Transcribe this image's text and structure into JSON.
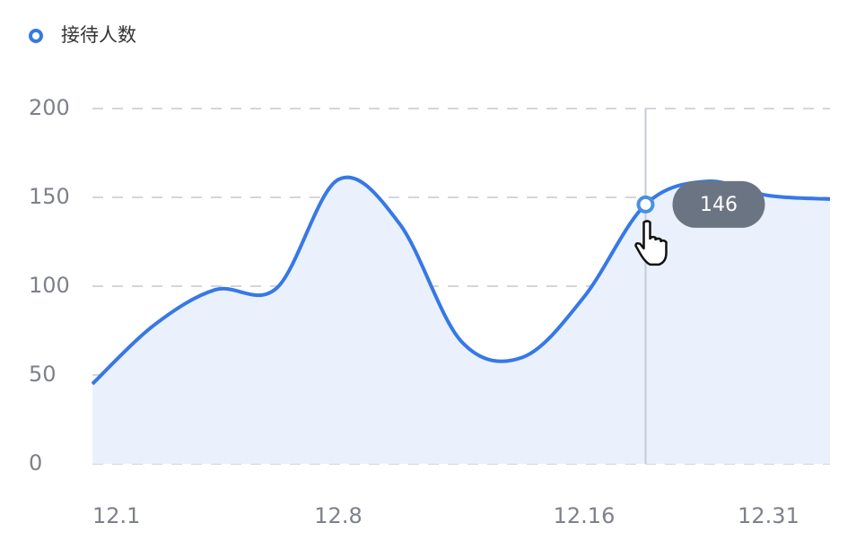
{
  "chart_data": {
    "type": "line",
    "categories": [
      "12.1",
      null,
      null,
      null,
      "12.8",
      null,
      null,
      null,
      "12.16",
      null,
      null,
      "12.31",
      null
    ],
    "series": [
      {
        "name": "接待人数",
        "color": "#3778e6",
        "values": [
          45,
          78,
          98,
          99,
          160,
          135,
          69,
          60,
          94,
          146,
          159,
          151,
          149
        ]
      }
    ],
    "ylim": [
      0,
      200
    ],
    "yticks": [
      0,
      50,
      100,
      150,
      200
    ],
    "grid": true,
    "area": true,
    "highlight_index": 9
  }
}
